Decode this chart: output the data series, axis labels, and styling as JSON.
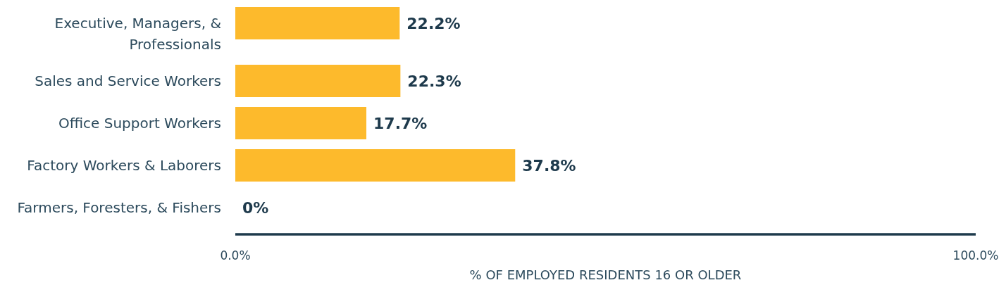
{
  "chart_data": {
    "type": "bar",
    "orientation": "horizontal",
    "categories": [
      "Executive, Managers, & Professionals",
      "Sales and Service Workers",
      "Office Support Workers",
      "Factory Workers & Laborers",
      "Farmers, Foresters, & Fishers"
    ],
    "values": [
      22.2,
      22.3,
      17.7,
      37.8,
      0
    ],
    "value_labels": [
      "22.2%",
      "22.3%",
      "17.7%",
      "37.8%",
      "0%"
    ],
    "color": "#fdba2c",
    "xlim": [
      0,
      100
    ],
    "xticks": [
      {
        "value": 0,
        "label": "0.0%"
      },
      {
        "value": 100,
        "label": "100.0%"
      }
    ],
    "xlabel": "% OF EMPLOYED RESIDENTS 16 OR OLDER",
    "grid": false
  }
}
